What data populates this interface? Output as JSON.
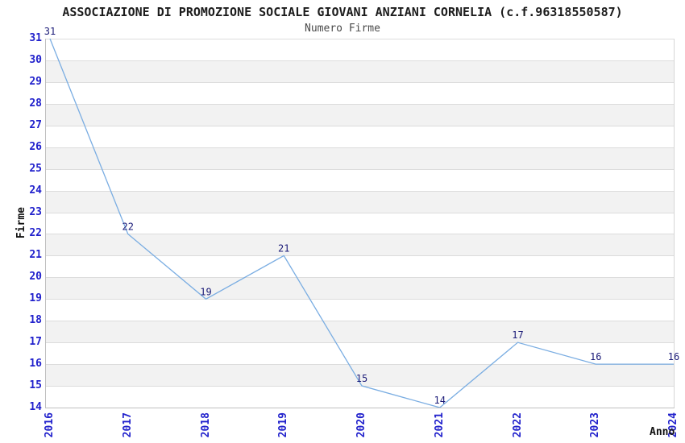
{
  "header": {
    "title": "ASSOCIAZIONE DI PROMOZIONE SOCIALE GIOVANI ANZIANI CORNELIA (c.f.96318550587)",
    "subtitle": "Numero Firme"
  },
  "chart_data": {
    "type": "line",
    "title": "ASSOCIAZIONE DI PROMOZIONE SOCIALE GIOVANI ANZIANI CORNELIA (c.f.96318550587)",
    "subtitle": "Numero Firme",
    "xlabel": "Anno",
    "ylabel": "Firme",
    "x": [
      "2016",
      "2017",
      "2018",
      "2019",
      "2020",
      "2021",
      "2022",
      "2023",
      "2024"
    ],
    "series": [
      {
        "name": "Numero Firme",
        "values": [
          31,
          22,
          19,
          21,
          15,
          14,
          17,
          16,
          16
        ]
      }
    ],
    "ylim": [
      14,
      31
    ],
    "ytick_step": 1,
    "grid": true,
    "data_labels": true,
    "legend": "none",
    "colors": {
      "line": "#7aade2",
      "tick_label": "#2121cc",
      "data_label": "#1b1b78",
      "band_alt": "#f2f2f2",
      "band_base": "#ffffff",
      "gridline": "#dcdcdc",
      "spine": "#bfbfbf",
      "spine_right": "#d6d6d6",
      "title": "#1c1c1c",
      "subtitle": "#4a4a4a",
      "axis_title": "#111111"
    }
  }
}
